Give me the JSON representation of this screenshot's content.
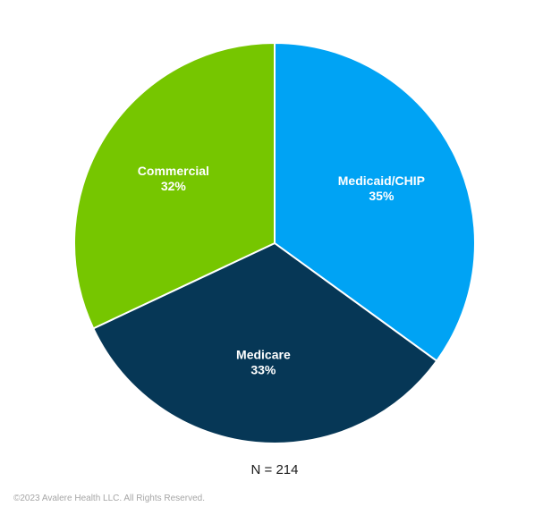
{
  "chart_data": {
    "type": "pie",
    "slices": [
      {
        "label": "Medicaid/CHIP",
        "value": 35,
        "value_label": "35%",
        "color": "#00a3f4"
      },
      {
        "label": "Medicare",
        "value": 33,
        "value_label": "33%",
        "color": "#063756"
      },
      {
        "label": "Commercial",
        "value": 32,
        "value_label": "32%",
        "color": "#76c600"
      }
    ],
    "start_angle": "top",
    "direction": "clockwise",
    "legend": "none",
    "slice_border_color": "#ffffff"
  },
  "annotations": {
    "sample_size": "N = 214"
  },
  "footer": {
    "copyright": "©2023 Avalere Health LLC.  All Rights Reserved."
  }
}
